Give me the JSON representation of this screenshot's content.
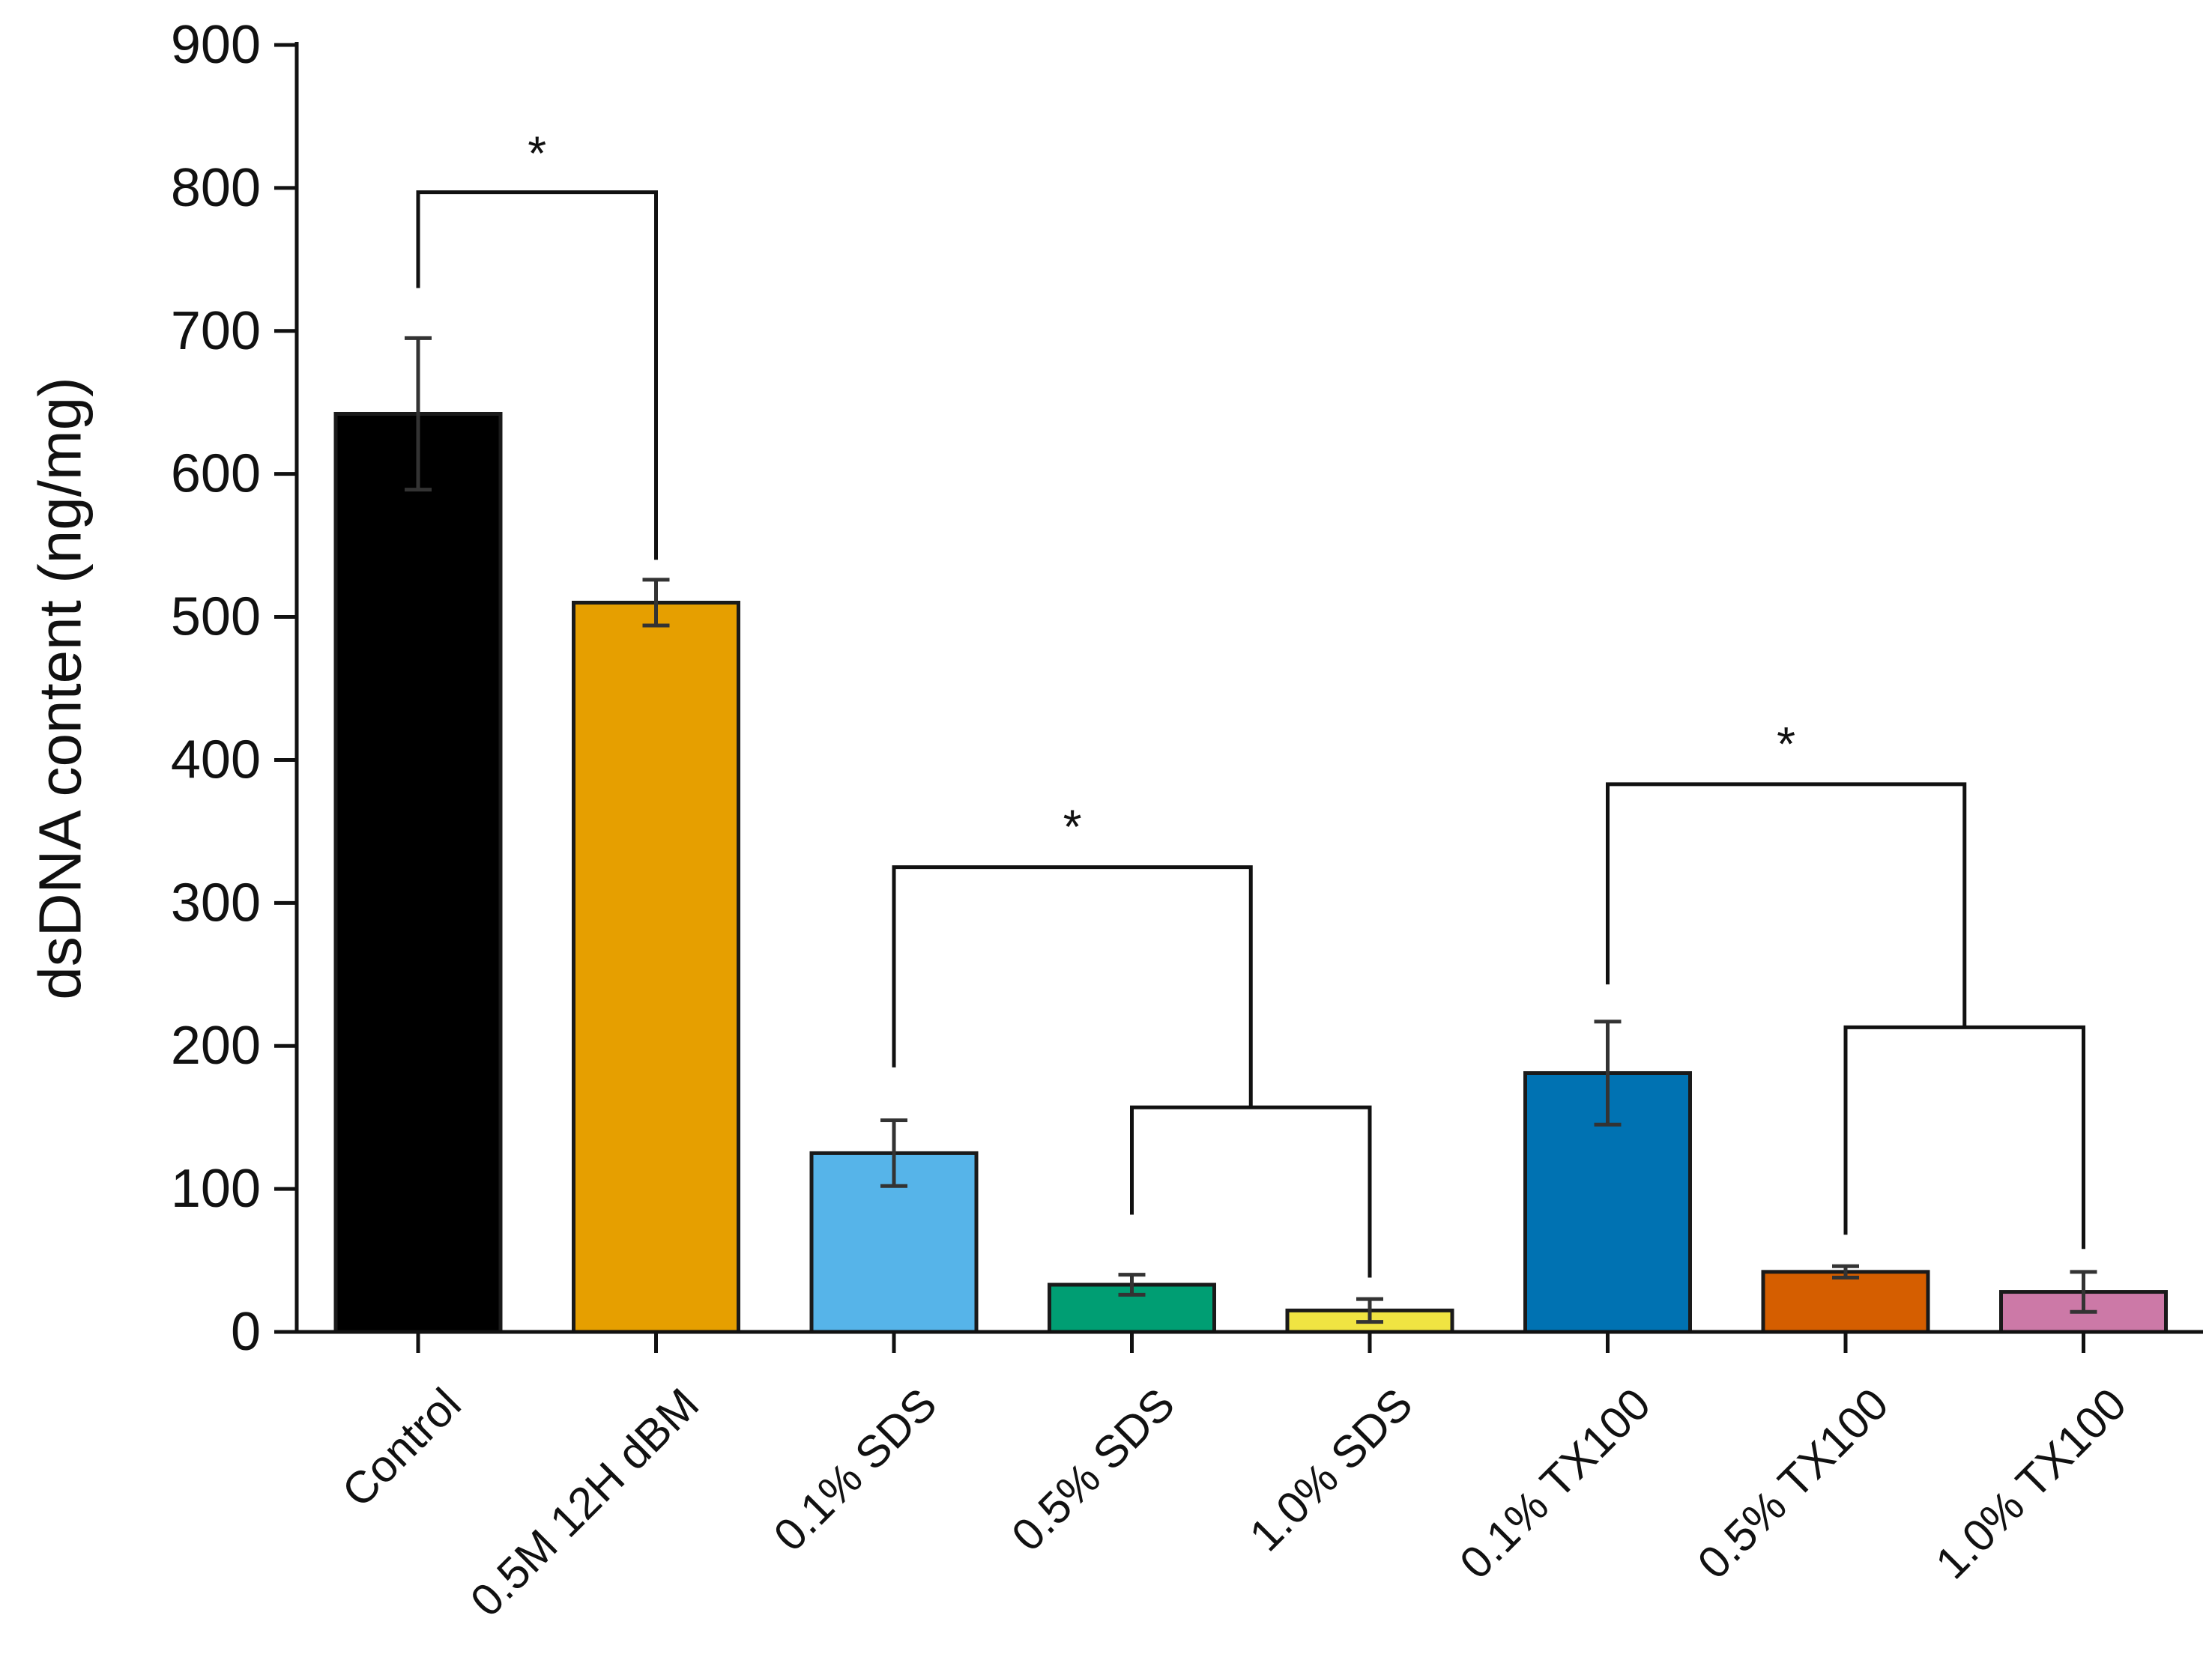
{
  "chart_data": {
    "type": "bar",
    "title": "",
    "xlabel": "",
    "ylabel": "dsDNA content (ng/mg)",
    "ylim": [
      0,
      900
    ],
    "yticks": [
      0,
      100,
      200,
      300,
      400,
      500,
      600,
      700,
      800,
      900
    ],
    "grid": false,
    "categories": [
      "Control",
      "0.5M 12H dBM",
      "0.1% SDS",
      "0.5% SDS",
      "1.0% SDS",
      "0.1% TX100",
      "0.5% TX100",
      "1.0% TX100"
    ],
    "values": [
      642,
      510,
      125,
      33,
      15,
      181,
      42,
      28
    ],
    "errors": [
      53,
      16,
      23,
      7,
      8,
      36,
      4,
      14
    ],
    "colors": [
      "#000000",
      "#E69F00",
      "#56B4E9",
      "#009E73",
      "#F0E442",
      "#0072B2",
      "#D55E00",
      "#CC79A7"
    ],
    "significance": [
      {
        "type": "simple",
        "from": 0,
        "to": 1,
        "label": "*",
        "level": 797,
        "legs": [
          730,
          540
        ]
      },
      {
        "type": "nested",
        "first": 2,
        "pair": [
          3,
          4
        ],
        "label": "*",
        "inner_level": 157,
        "inner_legs": [
          82,
          38
        ],
        "level": 325,
        "first_leg": 185
      },
      {
        "type": "nested",
        "first": 5,
        "pair": [
          6,
          7
        ],
        "label": "*",
        "inner_level": 213,
        "inner_legs": [
          68,
          58
        ],
        "level": 383,
        "first_leg": 243
      }
    ]
  }
}
